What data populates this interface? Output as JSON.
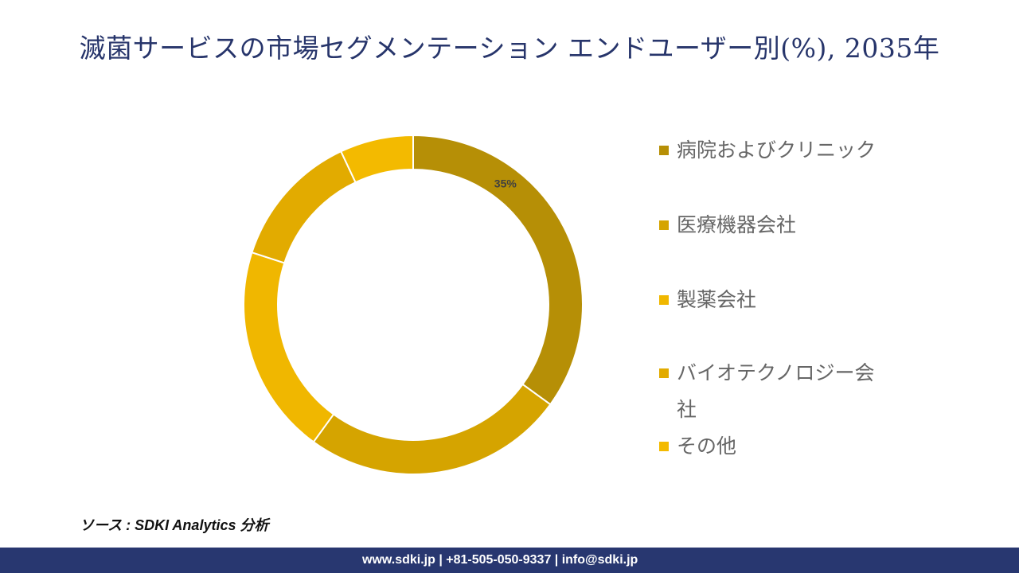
{
  "title": "滅菌サービスの市場セグメンテーション エンドユーザー別(%), 2035年",
  "chart_data": {
    "type": "donut",
    "title": "滅菌サービスの市場セグメンテーション エンドユーザー別(%), 2035年",
    "categories": [
      "病院およびクリニック",
      "医療機器会社",
      "製薬会社",
      "バイオテクノロジー会社",
      "その他"
    ],
    "values": [
      35,
      25,
      20,
      13,
      7
    ],
    "colors": [
      "#b68f06",
      "#d5a400",
      "#f0b700",
      "#e2ab00",
      "#f3ba00"
    ],
    "data_labels": [
      "35%",
      "",
      "",
      "",
      ""
    ],
    "legend_position": "right"
  },
  "source": "ソース : SDKI Analytics 分析",
  "footer": "www.sdki.jp | +81-505-050-9337 | info@sdki.jp"
}
